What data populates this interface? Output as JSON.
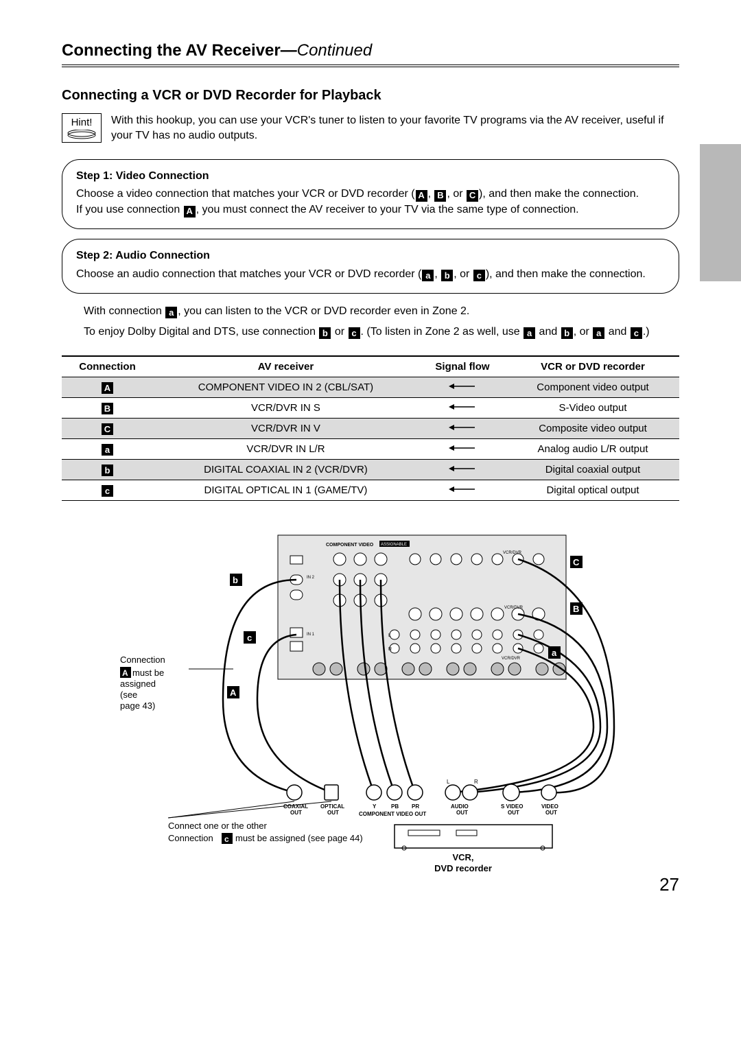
{
  "heading": {
    "main": "Connecting the AV Receiver—",
    "cont": "Continued"
  },
  "section_title": "Connecting a VCR or DVD Recorder for Playback",
  "hint": {
    "label": "Hint!",
    "text": "With this hookup, you can use your VCR's tuner to listen to your favorite TV programs via the AV receiver, useful if your TV has no audio outputs."
  },
  "step1": {
    "title": "Step 1: Video Connection",
    "line1a": "Choose a video connection that matches your VCR or DVD recorder (",
    "line1b": ", ",
    "line1c": ", or ",
    "line1d": "), and then make the connection.",
    "line2a": "If you use connection ",
    "line2b": ", you must connect the AV receiver to your TV via the same type of connection."
  },
  "step2": {
    "title": "Step 2: Audio Connection",
    "line1a": "Choose an audio connection that matches your VCR or DVD recorder (",
    "line1b": ", ",
    "line1c": ", or ",
    "line1d": "), and then make the connection."
  },
  "para1a": "With connection ",
  "para1b": ", you can listen to the VCR or DVD recorder even in Zone 2.",
  "para2a": "To enjoy Dolby Digital and DTS, use connection ",
  "para2b": " or ",
  "para2c": ". (To listen in Zone 2 as well, use ",
  "para2d": " and ",
  "para2e": ", or ",
  "para2f": " and ",
  "para2g": ".)",
  "tags": {
    "A": "A",
    "B": "B",
    "C": "C",
    "a": "a",
    "b": "b",
    "c": "c"
  },
  "table": {
    "headers": [
      "Connection",
      "AV receiver",
      "Signal flow",
      "VCR or DVD recorder"
    ],
    "rows": [
      {
        "tag": "A",
        "av": "COMPONENT VIDEO IN 2 (CBL/SAT)",
        "dev": "Component video output",
        "shade": true
      },
      {
        "tag": "B",
        "av": "VCR/DVR IN S",
        "dev": "S-Video output",
        "shade": false
      },
      {
        "tag": "C",
        "av": "VCR/DVR IN V",
        "dev": "Composite video output",
        "shade": true
      },
      {
        "tag": "a",
        "av": "VCR/DVR IN L/R",
        "dev": "Analog audio L/R output",
        "shade": false
      },
      {
        "tag": "b",
        "av": "DIGITAL COAXIAL IN 2 (VCR/DVR)",
        "dev": "Digital coaxial output",
        "shade": true
      },
      {
        "tag": "c",
        "av": "DIGITAL OPTICAL IN 1 (GAME/TV)",
        "dev": "Digital optical output",
        "shade": false
      }
    ]
  },
  "diagram": {
    "note_left1": "Connection",
    "note_left2": " must be assigned (see page 43)",
    "note_bottom1": "Connect one or the other",
    "note_bottom2a": "Connection ",
    "note_bottom2b": " must be assigned (see page 44)",
    "device_label1": "VCR,",
    "device_label2": "DVD recorder",
    "jack_labels": {
      "coax": "COAXIAL OUT",
      "opt": "OPTICAL OUT",
      "comp": "COMPONENT VIDEO OUT",
      "y": "Y",
      "pb": "PB",
      "pr": "PR",
      "audio": "AUDIO OUT",
      "l": "L",
      "r": "R",
      "svideo": "S VIDEO OUT",
      "video": "VIDEO OUT"
    }
  },
  "page_number": "27",
  "colors": {
    "shade": "#dcdcdc",
    "tab": "#b8b8b8"
  }
}
